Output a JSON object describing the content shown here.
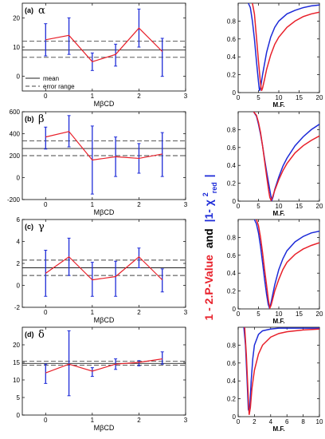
{
  "colors": {
    "line": "#e8202a",
    "errorbar": "#1d2bd8",
    "curve1": "#1d2bd8",
    "curve2": "#e8202a",
    "axis": "#000000"
  },
  "legend": {
    "mean": "mean",
    "error": "error range"
  },
  "shared_ylabel": {
    "part1": "1 - 2.P-Value",
    "and": "and",
    "part2_prefix": "|1- ",
    "chi": "χ",
    "sup": "2",
    "sub": "red",
    "suffix": "|"
  },
  "chart_data": [
    {
      "type": "line",
      "panel": "(a)",
      "greek": "α",
      "xlabel": "MβCD",
      "xlim": [
        -0.5,
        3
      ],
      "ylim": [
        -5,
        25
      ],
      "xticks": [
        "0",
        "1",
        "2",
        "3"
      ],
      "yticks": [
        "0",
        "10",
        "20"
      ],
      "x": [
        0,
        0.5,
        1,
        1.5,
        2,
        2.5
      ],
      "y": [
        12.5,
        14,
        5,
        7.5,
        16.5,
        8.5
      ],
      "err": [
        [
          7,
          18
        ],
        [
          7.5,
          20
        ],
        [
          2,
          8
        ],
        [
          3.5,
          11
        ],
        [
          10,
          23
        ],
        [
          0,
          13
        ]
      ],
      "mean": 9,
      "error_range": [
        6.5,
        12
      ]
    },
    {
      "type": "line",
      "panel": "(b)",
      "greek": "β",
      "xlabel": "MβCD",
      "xlim": [
        -0.5,
        3
      ],
      "ylim": [
        -200,
        600
      ],
      "xticks": [
        "0",
        "1",
        "2",
        "3"
      ],
      "yticks": [
        "-200",
        "0",
        "200",
        "400",
        "600"
      ],
      "x": [
        0,
        0.5,
        1,
        1.5,
        2,
        2.5
      ],
      "y": [
        370,
        420,
        160,
        190,
        175,
        215
      ],
      "err": [
        [
          260,
          460
        ],
        [
          280,
          565
        ],
        [
          -150,
          470
        ],
        [
          10,
          370
        ],
        [
          40,
          310
        ],
        [
          10,
          410
        ]
      ],
      "mean": 265,
      "error_range": [
        200,
        335
      ]
    },
    {
      "type": "line",
      "panel": "(c)",
      "greek": "γ",
      "xlabel": "MβCD",
      "xlim": [
        -0.5,
        3
      ],
      "ylim": [
        -2,
        6
      ],
      "xticks": [
        "0",
        "1",
        "2",
        "3"
      ],
      "yticks": [
        "-2",
        "0",
        "2",
        "4",
        "6"
      ],
      "x": [
        0,
        0.5,
        1,
        1.5,
        2,
        2.5
      ],
      "y": [
        1.1,
        2.6,
        0.5,
        0.8,
        2.6,
        0.5
      ],
      "err": [
        [
          -1,
          3.2
        ],
        [
          0.9,
          4.3
        ],
        [
          -1,
          2.1
        ],
        [
          -1,
          2.2
        ],
        [
          1.6,
          3.4
        ],
        [
          -0.6,
          1.5
        ]
      ],
      "mean": 1.6,
      "error_range": [
        0.9,
        2.3
      ]
    },
    {
      "type": "line",
      "panel": "(d)",
      "greek": "δ",
      "xlabel": "MβCD",
      "xlim": [
        -0.5,
        3
      ],
      "ylim": [
        0,
        25
      ],
      "xticks": [
        "0",
        "1",
        "2",
        "3"
      ],
      "yticks": [
        "0",
        "5",
        "10",
        "15",
        "20"
      ],
      "x": [
        0,
        0.5,
        1,
        1.5,
        2,
        2.5
      ],
      "y": [
        12,
        14.5,
        12.5,
        14.5,
        15,
        16
      ],
      "err": [
        [
          9,
          14.5
        ],
        [
          5.5,
          24
        ],
        [
          11,
          13.5
        ],
        [
          13,
          16
        ],
        [
          14,
          15.5
        ],
        [
          14.5,
          18
        ]
      ],
      "mean": 14.7,
      "error_range": [
        14.2,
        15.3
      ]
    },
    {
      "type": "line",
      "panel": "α-fit",
      "xlabel": "M.F.",
      "xlim": [
        0,
        20
      ],
      "ylim": [
        0,
        1
      ],
      "xticks": [
        "0",
        "5",
        "10",
        "15",
        "20"
      ],
      "yticks": [
        "0",
        "0.2",
        "0.4",
        "0.6",
        "0.8"
      ],
      "series": [
        {
          "color": "#1d2bd8",
          "x": [
            2.5,
            3,
            3.5,
            4,
            4.5,
            5,
            5.25,
            5.5,
            6,
            7,
            8,
            9,
            10,
            12,
            14,
            16,
            18,
            20
          ],
          "y": [
            1,
            0.95,
            0.8,
            0.6,
            0.35,
            0.12,
            0.02,
            0.05,
            0.2,
            0.45,
            0.62,
            0.73,
            0.8,
            0.88,
            0.92,
            0.95,
            0.97,
            0.98
          ]
        },
        {
          "color": "#e8202a",
          "x": [
            3.5,
            4,
            4.5,
            5,
            5.5,
            5.75,
            6,
            6.5,
            7,
            8,
            9,
            10,
            12,
            14,
            16,
            18,
            20
          ],
          "y": [
            1,
            0.88,
            0.62,
            0.35,
            0.1,
            0.02,
            0.05,
            0.15,
            0.26,
            0.42,
            0.54,
            0.62,
            0.73,
            0.8,
            0.85,
            0.88,
            0.9
          ]
        }
      ]
    },
    {
      "type": "line",
      "panel": "β-fit",
      "xlabel": "M.F.",
      "xlim": [
        0,
        20
      ],
      "ylim": [
        0,
        1
      ],
      "xticks": [
        "0",
        "5",
        "10",
        "15",
        "20"
      ],
      "yticks": [
        "0",
        "0.2",
        "0.4",
        "0.6",
        "0.8"
      ],
      "series": [
        {
          "color": "#1d2bd8",
          "x": [
            3.8,
            4.5,
            5,
            5.5,
            6,
            6.5,
            7,
            7.5,
            8,
            8.3,
            8.6,
            9,
            10,
            11,
            12,
            14,
            16,
            18,
            20
          ],
          "y": [
            1,
            0.95,
            0.86,
            0.75,
            0.62,
            0.47,
            0.33,
            0.2,
            0.07,
            0.01,
            0.05,
            0.13,
            0.27,
            0.39,
            0.48,
            0.62,
            0.72,
            0.8,
            0.86
          ]
        },
        {
          "color": "#e8202a",
          "x": [
            3.8,
            4.5,
            5,
            5.5,
            6,
            6.5,
            7,
            7.5,
            7.8,
            8.1,
            8.5,
            9,
            10,
            11,
            12,
            14,
            16,
            18,
            20
          ],
          "y": [
            1,
            0.96,
            0.88,
            0.77,
            0.62,
            0.45,
            0.28,
            0.12,
            0.04,
            0.01,
            0.05,
            0.12,
            0.24,
            0.34,
            0.42,
            0.54,
            0.62,
            0.68,
            0.73
          ]
        }
      ]
    },
    {
      "type": "line",
      "panel": "γ-fit",
      "xlabel": "M.F.",
      "xlim": [
        0,
        20
      ],
      "ylim": [
        0,
        1
      ],
      "xticks": [
        "0",
        "5",
        "10",
        "15",
        "20"
      ],
      "yticks": [
        "0",
        "0.2",
        "0.4",
        "0.6",
        "0.8"
      ],
      "series": [
        {
          "color": "#1d2bd8",
          "x": [
            4,
            4.5,
            5,
            5.5,
            6,
            6.5,
            7,
            7.4,
            7.7,
            8,
            8.5,
            9,
            10,
            11,
            12,
            14,
            16,
            18,
            20
          ],
          "y": [
            1,
            0.95,
            0.85,
            0.7,
            0.52,
            0.33,
            0.16,
            0.05,
            0.01,
            0.05,
            0.16,
            0.27,
            0.44,
            0.56,
            0.65,
            0.75,
            0.81,
            0.85,
            0.87
          ]
        },
        {
          "color": "#e8202a",
          "x": [
            4.5,
            5,
            5.5,
            6,
            6.5,
            7,
            7.5,
            7.8,
            8.1,
            8.5,
            9,
            10,
            11,
            12,
            14,
            16,
            18,
            20
          ],
          "y": [
            1,
            0.93,
            0.8,
            0.63,
            0.44,
            0.26,
            0.08,
            0.01,
            0.04,
            0.11,
            0.2,
            0.33,
            0.44,
            0.52,
            0.61,
            0.67,
            0.71,
            0.74
          ]
        }
      ]
    },
    {
      "type": "line",
      "panel": "δ-fit",
      "xlabel": "M.F.",
      "xlim": [
        0,
        10
      ],
      "ylim": [
        0,
        1
      ],
      "xticks": [
        "0",
        "2",
        "4",
        "6",
        "8",
        "10"
      ],
      "yticks": [
        "0",
        "0.2",
        "0.4",
        "0.6",
        "0.8"
      ],
      "series": [
        {
          "color": "#1d2bd8",
          "x": [
            0.7,
            0.9,
            1.1,
            1.25,
            1.4,
            1.6,
            1.8,
            2,
            2.5,
            3,
            4,
            5,
            6,
            8,
            10
          ],
          "y": [
            1,
            0.8,
            0.4,
            0.08,
            0.05,
            0.4,
            0.65,
            0.8,
            0.92,
            0.96,
            0.98,
            0.99,
            0.99,
            0.99,
            0.99
          ]
        },
        {
          "color": "#e8202a",
          "x": [
            0.8,
            1,
            1.2,
            1.35,
            1.5,
            1.7,
            2,
            2.5,
            3,
            4,
            5,
            6,
            8,
            10
          ],
          "y": [
            1,
            0.7,
            0.3,
            0.02,
            0.1,
            0.32,
            0.52,
            0.7,
            0.8,
            0.89,
            0.93,
            0.95,
            0.97,
            0.98
          ]
        }
      ]
    }
  ]
}
